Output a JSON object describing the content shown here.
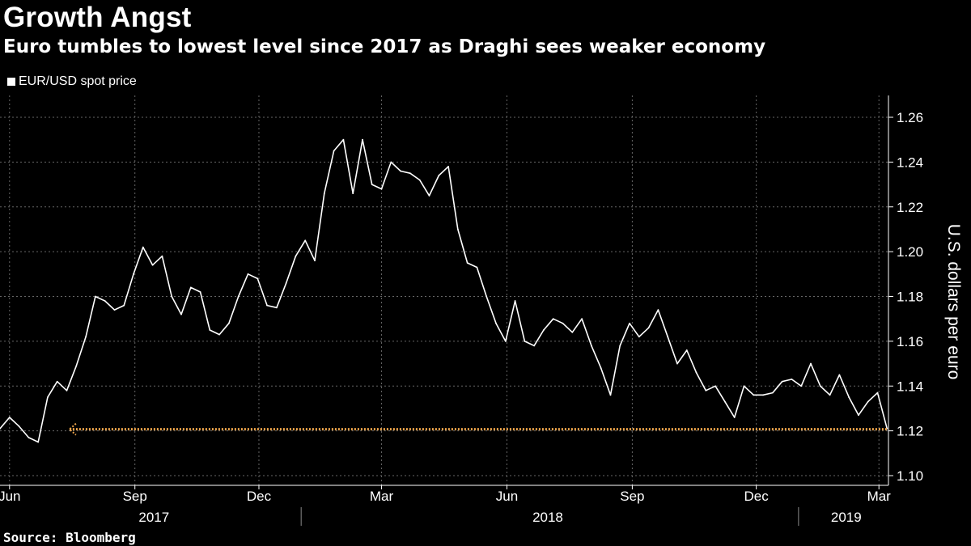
{
  "header": {
    "title": "Growth Angst",
    "subtitle": "Euro tumbles to lowest level since 2017 as Draghi sees weaker economy"
  },
  "legend": {
    "label": "EUR/USD spot price"
  },
  "footer": {
    "source": "Source: Bloomberg"
  },
  "colors": {
    "background": "#000000",
    "series": "#ffffff",
    "reference_line": "#f0a64c",
    "grid": "#666666"
  },
  "chart_data": {
    "type": "line",
    "title": "Growth Angst",
    "subtitle": "Euro tumbles to lowest level since 2017 as Draghi sees weaker economy",
    "ylabel": "U.S. dollars per euro",
    "ylim": [
      1.1,
      1.26
    ],
    "yticks": [
      "1.10",
      "1.12",
      "1.14",
      "1.16",
      "1.18",
      "1.20",
      "1.22",
      "1.24",
      "1.26"
    ],
    "ytick_values": [
      1.1,
      1.12,
      1.14,
      1.16,
      1.18,
      1.2,
      1.22,
      1.24,
      1.26
    ],
    "xlim": [
      "2017-05-25",
      "2019-03-08"
    ],
    "month_ticks": [
      {
        "label": "Jun",
        "date": "2017-06-01"
      },
      {
        "label": "Sep",
        "date": "2017-09-01"
      },
      {
        "label": "Dec",
        "date": "2017-12-01"
      },
      {
        "label": "Mar",
        "date": "2018-03-01"
      },
      {
        "label": "Jun",
        "date": "2018-06-01"
      },
      {
        "label": "Sep",
        "date": "2018-09-01"
      },
      {
        "label": "Dec",
        "date": "2018-12-01"
      },
      {
        "label": "Mar",
        "date": "2019-03-01"
      }
    ],
    "year_labels": [
      {
        "label": "2017",
        "date": "2017-09-15"
      },
      {
        "label": "2018",
        "date": "2018-07-01"
      },
      {
        "label": "2019",
        "date": "2019-02-05"
      }
    ],
    "year_dividers": [
      "2018-01-01",
      "2019-01-01"
    ],
    "grid": true,
    "reference_line": {
      "value": 1.1207,
      "from": "2017-07-15",
      "to": "2019-03-07"
    },
    "series": [
      {
        "name": "EUR/USD spot price",
        "points": [
          [
            "2017-05-25",
            1.121
          ],
          [
            "2017-06-01",
            1.126
          ],
          [
            "2017-06-08",
            1.122
          ],
          [
            "2017-06-15",
            1.117
          ],
          [
            "2017-06-22",
            1.115
          ],
          [
            "2017-06-29",
            1.135
          ],
          [
            "2017-07-06",
            1.142
          ],
          [
            "2017-07-13",
            1.138
          ],
          [
            "2017-07-20",
            1.149
          ],
          [
            "2017-07-27",
            1.162
          ],
          [
            "2017-08-03",
            1.18
          ],
          [
            "2017-08-10",
            1.178
          ],
          [
            "2017-08-17",
            1.174
          ],
          [
            "2017-08-24",
            1.176
          ],
          [
            "2017-08-31",
            1.19
          ],
          [
            "2017-09-07",
            1.202
          ],
          [
            "2017-09-14",
            1.194
          ],
          [
            "2017-09-21",
            1.198
          ],
          [
            "2017-09-28",
            1.18
          ],
          [
            "2017-10-05",
            1.172
          ],
          [
            "2017-10-12",
            1.184
          ],
          [
            "2017-10-19",
            1.182
          ],
          [
            "2017-10-26",
            1.165
          ],
          [
            "2017-11-02",
            1.163
          ],
          [
            "2017-11-09",
            1.168
          ],
          [
            "2017-11-16",
            1.18
          ],
          [
            "2017-11-23",
            1.19
          ],
          [
            "2017-11-30",
            1.188
          ],
          [
            "2017-12-07",
            1.176
          ],
          [
            "2017-12-14",
            1.175
          ],
          [
            "2017-12-21",
            1.186
          ],
          [
            "2017-12-28",
            1.198
          ],
          [
            "2018-01-04",
            1.205
          ],
          [
            "2018-01-11",
            1.196
          ],
          [
            "2018-01-18",
            1.226
          ],
          [
            "2018-01-25",
            1.245
          ],
          [
            "2018-02-01",
            1.25
          ],
          [
            "2018-02-08",
            1.226
          ],
          [
            "2018-02-15",
            1.25
          ],
          [
            "2018-02-22",
            1.23
          ],
          [
            "2018-03-01",
            1.228
          ],
          [
            "2018-03-08",
            1.24
          ],
          [
            "2018-03-15",
            1.236
          ],
          [
            "2018-03-22",
            1.235
          ],
          [
            "2018-03-29",
            1.232
          ],
          [
            "2018-04-05",
            1.225
          ],
          [
            "2018-04-12",
            1.234
          ],
          [
            "2018-04-19",
            1.238
          ],
          [
            "2018-04-26",
            1.21
          ],
          [
            "2018-05-03",
            1.195
          ],
          [
            "2018-05-10",
            1.193
          ],
          [
            "2018-05-17",
            1.18
          ],
          [
            "2018-05-24",
            1.168
          ],
          [
            "2018-05-31",
            1.16
          ],
          [
            "2018-06-07",
            1.178
          ],
          [
            "2018-06-14",
            1.16
          ],
          [
            "2018-06-21",
            1.158
          ],
          [
            "2018-06-28",
            1.165
          ],
          [
            "2018-07-05",
            1.17
          ],
          [
            "2018-07-12",
            1.168
          ],
          [
            "2018-07-19",
            1.164
          ],
          [
            "2018-07-26",
            1.17
          ],
          [
            "2018-08-02",
            1.158
          ],
          [
            "2018-08-09",
            1.148
          ],
          [
            "2018-08-16",
            1.136
          ],
          [
            "2018-08-23",
            1.158
          ],
          [
            "2018-08-30",
            1.168
          ],
          [
            "2018-09-06",
            1.162
          ],
          [
            "2018-09-13",
            1.166
          ],
          [
            "2018-09-20",
            1.174
          ],
          [
            "2018-09-27",
            1.162
          ],
          [
            "2018-10-04",
            1.15
          ],
          [
            "2018-10-11",
            1.156
          ],
          [
            "2018-10-18",
            1.146
          ],
          [
            "2018-10-25",
            1.138
          ],
          [
            "2018-11-01",
            1.14
          ],
          [
            "2018-11-08",
            1.133
          ],
          [
            "2018-11-15",
            1.126
          ],
          [
            "2018-11-22",
            1.14
          ],
          [
            "2018-11-29",
            1.136
          ],
          [
            "2018-12-06",
            1.136
          ],
          [
            "2018-12-13",
            1.137
          ],
          [
            "2018-12-20",
            1.142
          ],
          [
            "2018-12-27",
            1.143
          ],
          [
            "2019-01-03",
            1.14
          ],
          [
            "2019-01-10",
            1.15
          ],
          [
            "2019-01-17",
            1.14
          ],
          [
            "2019-01-24",
            1.136
          ],
          [
            "2019-01-31",
            1.145
          ],
          [
            "2019-02-07",
            1.135
          ],
          [
            "2019-02-14",
            1.127
          ],
          [
            "2019-02-21",
            1.133
          ],
          [
            "2019-02-28",
            1.137
          ],
          [
            "2019-03-07",
            1.121
          ]
        ]
      }
    ]
  }
}
